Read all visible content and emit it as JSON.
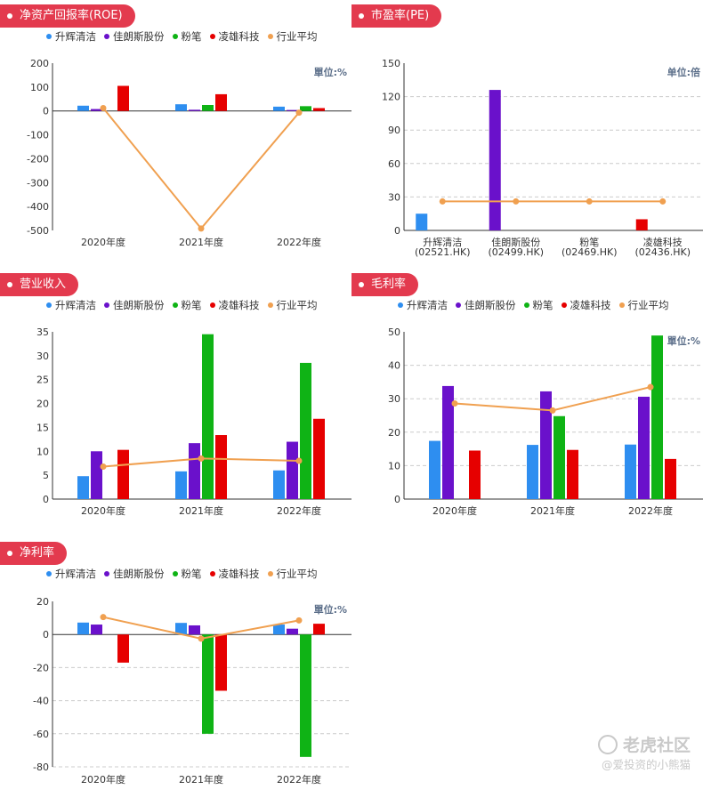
{
  "legend": [
    "升辉清洁",
    "佳朗斯股份",
    "粉笔",
    "凌雄科技",
    "行业平均"
  ],
  "colors": {
    "series": [
      "#2e8ef0",
      "#6a11cb",
      "#0fb315",
      "#e60000"
    ],
    "avg": "#f0a050",
    "pill": "#e33a4e",
    "axis": "#333333",
    "grid": "#cccccc",
    "unit": "#5c6f8a"
  },
  "watermark": {
    "big": "老虎社区",
    "small": "@爱投资的小熊猫"
  },
  "chart_data": [
    {
      "id": "roe",
      "type": "bar",
      "title": "净资产回报率(ROE)",
      "unit": "單位:%",
      "categories": [
        "2020年度",
        "2021年度",
        "2022年度"
      ],
      "ylim": [
        -500,
        200
      ],
      "yticks": [
        200,
        100,
        0,
        -100,
        -200,
        -300,
        -400,
        -500
      ],
      "grid": false,
      "series": [
        {
          "name": "升辉清洁",
          "values": [
            22,
            28,
            18
          ]
        },
        {
          "name": "佳朗斯股份",
          "values": [
            8,
            5,
            4
          ]
        },
        {
          "name": "粉笔",
          "values": [
            null,
            25,
            20
          ]
        },
        {
          "name": "凌雄科技",
          "values": [
            105,
            70,
            12
          ]
        }
      ],
      "avg": [
        12,
        -492,
        -7
      ]
    },
    {
      "id": "pe",
      "type": "bar",
      "title": "市盈率(PE)",
      "unit": "单位:倍",
      "categories": [
        "升辉清洁\n(02521.HK)",
        "佳朗斯股份\n(02499.HK)",
        "粉笔\n(02469.HK)",
        "凌雄科技\n(02436.HK)"
      ],
      "ylim": [
        0,
        150
      ],
      "yticks": [
        150,
        120,
        90,
        60,
        30,
        0
      ],
      "grid": true,
      "values": [
        15,
        126,
        null,
        10
      ],
      "avg": [
        26,
        26,
        26,
        26
      ]
    },
    {
      "id": "revenue",
      "type": "bar",
      "title": "营业收入",
      "unit": "",
      "categories": [
        "2020年度",
        "2021年度",
        "2022年度"
      ],
      "ylim": [
        0,
        35
      ],
      "yticks": [
        35,
        30,
        25,
        20,
        15,
        10,
        5,
        0
      ],
      "grid": false,
      "series": [
        {
          "name": "升辉清洁",
          "values": [
            4.8,
            5.8,
            6.0
          ]
        },
        {
          "name": "佳朗斯股份",
          "values": [
            10.0,
            11.7,
            12.0
          ]
        },
        {
          "name": "粉笔",
          "values": [
            null,
            34.5,
            28.5
          ]
        },
        {
          "name": "凌雄科技",
          "values": [
            10.3,
            13.4,
            16.8
          ]
        }
      ],
      "avg": [
        6.8,
        8.5,
        8.0
      ]
    },
    {
      "id": "gross_margin",
      "type": "bar",
      "title": "毛利率",
      "unit": "單位:%",
      "categories": [
        "2020年度",
        "2021年度",
        "2022年度"
      ],
      "ylim": [
        0,
        50
      ],
      "yticks": [
        50,
        40,
        30,
        20,
        10,
        0
      ],
      "grid": true,
      "series": [
        {
          "name": "升辉清洁",
          "values": [
            17.4,
            16.2,
            16.3
          ]
        },
        {
          "name": "佳朗斯股份",
          "values": [
            33.8,
            32.2,
            30.6
          ]
        },
        {
          "name": "粉笔",
          "values": [
            null,
            24.8,
            48.9
          ]
        },
        {
          "name": "凌雄科技",
          "values": [
            14.5,
            14.7,
            12.0
          ]
        }
      ],
      "avg": [
        28.6,
        26.5,
        33.5
      ]
    },
    {
      "id": "net_margin",
      "type": "bar",
      "title": "净利率",
      "unit": "單位:%",
      "categories": [
        "2020年度",
        "2021年度",
        "2022年度"
      ],
      "ylim": [
        -80,
        20
      ],
      "yticks": [
        20,
        0,
        -20,
        -40,
        -60,
        -80
      ],
      "grid": true,
      "series": [
        {
          "name": "升辉清洁",
          "values": [
            7.2,
            7.0,
            6.0
          ]
        },
        {
          "name": "佳朗斯股份",
          "values": [
            6.0,
            5.5,
            3.5
          ]
        },
        {
          "name": "粉笔",
          "values": [
            null,
            -60,
            -74
          ]
        },
        {
          "name": "凌雄科技",
          "values": [
            -17,
            -34,
            6.5
          ]
        }
      ],
      "avg": [
        10.5,
        -2.5,
        8.5
      ]
    }
  ]
}
